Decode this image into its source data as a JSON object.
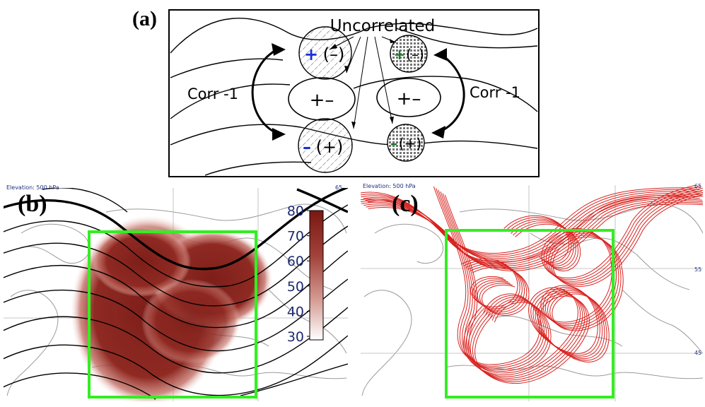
{
  "panel_a": {
    "label": "(a)",
    "uncorrelated": "Uncorrelated",
    "corr_left": "Corr -1",
    "corr_right": "Corr -1",
    "center_left": "+–",
    "center_right": "+–",
    "top_left_sign": "+",
    "top_left_paren": "(–)",
    "bottom_left_sign": "–",
    "bottom_left_paren": "(+)",
    "top_right_sign": "+",
    "top_right_paren": "(–)",
    "bottom_right_sign": "–",
    "bottom_right_paren": "(+)"
  },
  "panel_b": {
    "label": "(b)",
    "elevation": "Elevation: 500 hPa",
    "lat_top": "65",
    "colorbar_ticks": [
      "80",
      "70",
      "60",
      "50",
      "40",
      "30"
    ]
  },
  "panel_c": {
    "label": "(c)",
    "elevation": "Elevation: 500 hPa",
    "lat_labels": [
      "65",
      "55",
      "45"
    ]
  },
  "colors": {
    "blue_sign": "#1a2fd6",
    "green_sign": "#1e7a2a",
    "box_green": "#33ee22",
    "trajectory_red": "#d8231f",
    "density_dark": "#7a1712",
    "map_gray": "#9a9a9a",
    "lat_label_blue": "#202f80"
  }
}
